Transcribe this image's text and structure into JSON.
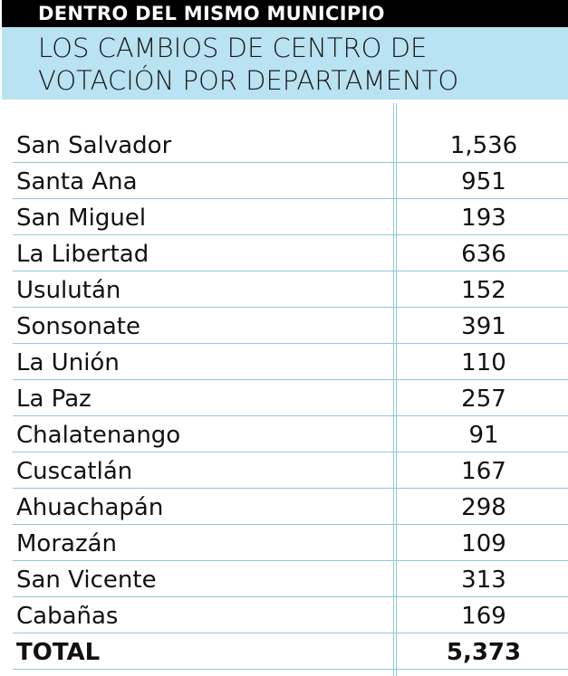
{
  "header": {
    "title": "DENTRO DEL MISMO MUNICIPIO",
    "subtitle_line1": "LOS CAMBIOS DE CENTRO DE",
    "subtitle_line2": "VOTACIÓN POR DEPARTAMENTO"
  },
  "colors": {
    "header_bg": "#000000",
    "subtitle_bg": "#b9e2f3",
    "rule": "#8ec9e2"
  },
  "chart_data": {
    "type": "table",
    "columns": [
      "",
      ""
    ],
    "rows": [
      {
        "departamento": "San Salvador",
        "cambios": "1,536"
      },
      {
        "departamento": "Santa Ana",
        "cambios": "951"
      },
      {
        "departamento": "San Miguel",
        "cambios": "193"
      },
      {
        "departamento": "La Libertad",
        "cambios": "636"
      },
      {
        "departamento": "Usulután",
        "cambios": "152"
      },
      {
        "departamento": "Sonsonate",
        "cambios": "391"
      },
      {
        "departamento": "La Unión",
        "cambios": "110"
      },
      {
        "departamento": "La Paz",
        "cambios": "257"
      },
      {
        "departamento": "Chalatenango",
        "cambios": "91"
      },
      {
        "departamento": "Cuscatlán",
        "cambios": "167"
      },
      {
        "departamento": "Ahuachapán",
        "cambios": "298"
      },
      {
        "departamento": "Morazán",
        "cambios": "109"
      },
      {
        "departamento": "San Vicente",
        "cambios": "313"
      },
      {
        "departamento": "Cabañas",
        "cambios": "169"
      }
    ],
    "total": {
      "label": "TOTAL",
      "value": "5,373"
    }
  }
}
